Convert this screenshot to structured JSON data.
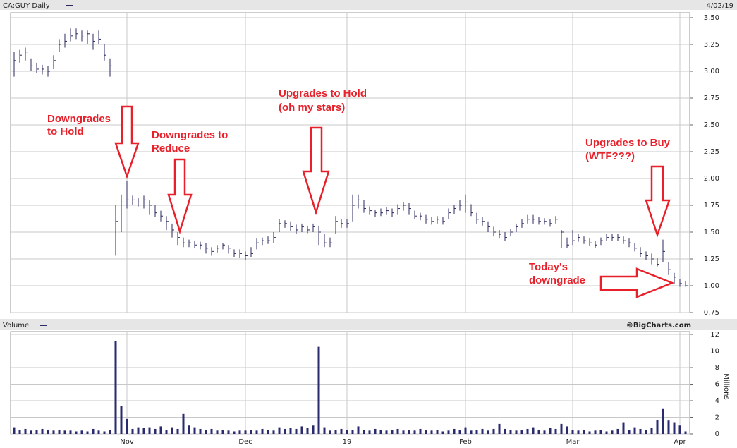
{
  "chart_data": [
    {
      "type": "ohlc",
      "title": "CA:GUY Daily",
      "date": "4/02/19",
      "color": "#2a2a5e",
      "ylim": [
        0.75,
        3.5
      ],
      "yticks": [
        {
          "value": 0.75,
          "label": "0.75"
        },
        {
          "value": 1,
          "label": "1.00"
        },
        {
          "value": 1.25,
          "label": "1.25"
        },
        {
          "value": 1.5,
          "label": "1.50"
        },
        {
          "value": 1.75,
          "label": "1.75"
        },
        {
          "value": 2,
          "label": "2.00"
        },
        {
          "value": 2.25,
          "label": "2.25"
        },
        {
          "value": 2.5,
          "label": "2.50"
        },
        {
          "value": 2.75,
          "label": "2.75"
        },
        {
          "value": 3,
          "label": "3.00"
        },
        {
          "value": 3.25,
          "label": "3.25"
        },
        {
          "value": 3.5,
          "label": "3.50"
        }
      ],
      "grid": true,
      "close": [
        3.1,
        3.15,
        3.18,
        3.05,
        3.02,
        3.02,
        3.0,
        3.1,
        3.25,
        3.28,
        3.33,
        3.35,
        3.32,
        3.35,
        3.28,
        3.3,
        3.15,
        3.05,
        1.6,
        1.78,
        1.8,
        1.8,
        1.78,
        1.8,
        1.75,
        1.68,
        1.65,
        1.6,
        1.52,
        1.45,
        1.4,
        1.4,
        1.38,
        1.38,
        1.35,
        1.32,
        1.35,
        1.38,
        1.35,
        1.3,
        1.3,
        1.28,
        1.3,
        1.4,
        1.42,
        1.42,
        1.45,
        1.58,
        1.58,
        1.55,
        1.52,
        1.55,
        1.52,
        1.55,
        1.5,
        1.4,
        1.4,
        1.6,
        1.58,
        1.58,
        1.75,
        1.8,
        1.72,
        1.7,
        1.68,
        1.68,
        1.7,
        1.68,
        1.72,
        1.75,
        1.72,
        1.65,
        1.65,
        1.62,
        1.6,
        1.62,
        1.6,
        1.68,
        1.72,
        1.75,
        1.78,
        1.68,
        1.62,
        1.6,
        1.55,
        1.5,
        1.48,
        1.45,
        1.5,
        1.55,
        1.58,
        1.62,
        1.62,
        1.6,
        1.6,
        1.58,
        1.62,
        1.5,
        1.38,
        1.42,
        1.45,
        1.42,
        1.4,
        1.38,
        1.42,
        1.45,
        1.45,
        1.45,
        1.42,
        1.4,
        1.35,
        1.3,
        1.28,
        1.25,
        1.2,
        1.32,
        1.15,
        1.08,
        1.02,
        1.0
      ],
      "high": [
        3.18,
        3.2,
        3.22,
        3.12,
        3.08,
        3.06,
        3.05,
        3.15,
        3.3,
        3.35,
        3.4,
        3.4,
        3.38,
        3.38,
        3.35,
        3.38,
        3.25,
        3.12,
        1.75,
        1.85,
        1.98,
        1.84,
        1.82,
        1.84,
        1.8,
        1.75,
        1.7,
        1.65,
        1.58,
        1.5,
        1.45,
        1.43,
        1.42,
        1.41,
        1.4,
        1.36,
        1.38,
        1.4,
        1.38,
        1.34,
        1.34,
        1.32,
        1.36,
        1.44,
        1.45,
        1.46,
        1.5,
        1.62,
        1.61,
        1.6,
        1.57,
        1.58,
        1.56,
        1.58,
        1.56,
        1.48,
        1.45,
        1.65,
        1.62,
        1.62,
        1.85,
        1.85,
        1.8,
        1.74,
        1.71,
        1.72,
        1.73,
        1.72,
        1.76,
        1.78,
        1.77,
        1.7,
        1.68,
        1.66,
        1.64,
        1.65,
        1.64,
        1.72,
        1.75,
        1.8,
        1.85,
        1.76,
        1.68,
        1.64,
        1.6,
        1.55,
        1.52,
        1.5,
        1.53,
        1.58,
        1.62,
        1.66,
        1.66,
        1.64,
        1.63,
        1.62,
        1.65,
        1.52,
        1.45,
        1.52,
        1.48,
        1.46,
        1.44,
        1.42,
        1.45,
        1.48,
        1.48,
        1.48,
        1.46,
        1.44,
        1.4,
        1.36,
        1.32,
        1.3,
        1.26,
        1.43,
        1.22,
        1.12,
        1.06,
        1.04
      ],
      "low": [
        2.95,
        3.08,
        3.1,
        3.0,
        2.98,
        2.97,
        2.95,
        3.02,
        3.18,
        3.22,
        3.28,
        3.3,
        3.28,
        3.25,
        3.2,
        3.25,
        3.1,
        2.95,
        1.28,
        1.5,
        1.72,
        1.75,
        1.74,
        1.72,
        1.66,
        1.64,
        1.6,
        1.52,
        1.45,
        1.38,
        1.36,
        1.36,
        1.35,
        1.34,
        1.3,
        1.28,
        1.31,
        1.34,
        1.3,
        1.27,
        1.26,
        1.24,
        1.27,
        1.34,
        1.38,
        1.39,
        1.4,
        1.5,
        1.54,
        1.51,
        1.48,
        1.5,
        1.49,
        1.5,
        1.38,
        1.36,
        1.36,
        1.48,
        1.54,
        1.54,
        1.6,
        1.72,
        1.68,
        1.66,
        1.64,
        1.65,
        1.66,
        1.64,
        1.66,
        1.7,
        1.66,
        1.62,
        1.61,
        1.58,
        1.57,
        1.58,
        1.57,
        1.62,
        1.67,
        1.7,
        1.68,
        1.65,
        1.58,
        1.56,
        1.5,
        1.46,
        1.44,
        1.42,
        1.46,
        1.5,
        1.54,
        1.58,
        1.58,
        1.57,
        1.57,
        1.55,
        1.58,
        1.35,
        1.35,
        1.38,
        1.41,
        1.39,
        1.37,
        1.35,
        1.38,
        1.42,
        1.42,
        1.42,
        1.39,
        1.36,
        1.32,
        1.27,
        1.24,
        1.2,
        1.18,
        1.22,
        1.1,
        1.02,
        0.99,
        0.99
      ],
      "annotations": [
        {
          "lines": [
            "Downgrades",
            "to Hold"
          ]
        },
        {
          "lines": [
            "Downgrades to",
            "Reduce"
          ]
        },
        {
          "lines": [
            "Upgrades to Hold",
            "(oh my stars)"
          ]
        },
        {
          "lines": [
            "Upgrades to Buy",
            "(WTF???)"
          ]
        },
        {
          "lines": [
            "Today's",
            "downgrade"
          ]
        }
      ]
    },
    {
      "type": "bar",
      "title": "Volume",
      "credit": "©BigCharts.com",
      "y_label": "Millions",
      "color": "#2a2a6e",
      "ylim": [
        0,
        12
      ],
      "yticks": [
        0,
        2,
        4,
        6,
        8,
        10,
        12
      ],
      "grid": true,
      "categories": [
        null,
        null,
        null,
        null,
        null,
        null,
        null,
        null,
        null,
        null,
        null,
        null,
        null,
        null,
        null,
        null,
        null,
        null,
        null,
        null,
        "Nov",
        null,
        null,
        null,
        null,
        null,
        null,
        null,
        null,
        null,
        null,
        null,
        null,
        null,
        null,
        null,
        null,
        null,
        null,
        null,
        null,
        "Dec",
        null,
        null,
        null,
        null,
        null,
        null,
        null,
        null,
        null,
        null,
        null,
        null,
        null,
        null,
        null,
        null,
        null,
        "19",
        null,
        null,
        null,
        null,
        null,
        null,
        null,
        null,
        null,
        null,
        null,
        null,
        null,
        null,
        null,
        null,
        null,
        null,
        null,
        null,
        "Feb",
        null,
        null,
        null,
        null,
        null,
        null,
        null,
        null,
        null,
        null,
        null,
        null,
        null,
        null,
        null,
        null,
        null,
        null,
        "Mar",
        null,
        null,
        null,
        null,
        null,
        null,
        null,
        null,
        null,
        null,
        null,
        null,
        null,
        null,
        null,
        null,
        null,
        null,
        "Apr",
        null
      ],
      "values": [
        0.8,
        0.5,
        0.6,
        0.4,
        0.5,
        0.6,
        0.5,
        0.4,
        0.5,
        0.4,
        0.4,
        0.3,
        0.4,
        0.3,
        0.6,
        0.4,
        0.3,
        0.5,
        11.2,
        3.4,
        1.8,
        0.6,
        0.8,
        0.7,
        0.8,
        0.6,
        0.9,
        0.5,
        0.8,
        0.6,
        2.4,
        1.0,
        0.8,
        0.6,
        0.5,
        0.6,
        0.4,
        0.5,
        0.4,
        0.3,
        0.4,
        0.4,
        0.5,
        0.4,
        0.6,
        0.5,
        0.4,
        0.8,
        0.6,
        0.7,
        0.6,
        0.9,
        0.7,
        1.0,
        10.5,
        0.8,
        0.4,
        0.5,
        0.6,
        0.5,
        0.5,
        0.9,
        0.5,
        0.4,
        0.6,
        0.5,
        0.4,
        0.5,
        0.6,
        0.4,
        0.5,
        0.4,
        0.6,
        0.5,
        0.4,
        0.5,
        0.3,
        0.4,
        0.6,
        0.5,
        0.8,
        0.4,
        0.5,
        0.6,
        0.4,
        0.6,
        1.2,
        0.6,
        0.5,
        0.4,
        0.5,
        0.6,
        0.8,
        0.5,
        0.4,
        0.7,
        0.6,
        1.2,
        0.9,
        0.5,
        0.4,
        0.5,
        0.3,
        0.4,
        0.5,
        0.3,
        0.4,
        0.6,
        1.4,
        0.5,
        0.8,
        0.6,
        0.5,
        0.7,
        1.7,
        3.0,
        1.6,
        1.4,
        1.0,
        0.3
      ]
    }
  ]
}
